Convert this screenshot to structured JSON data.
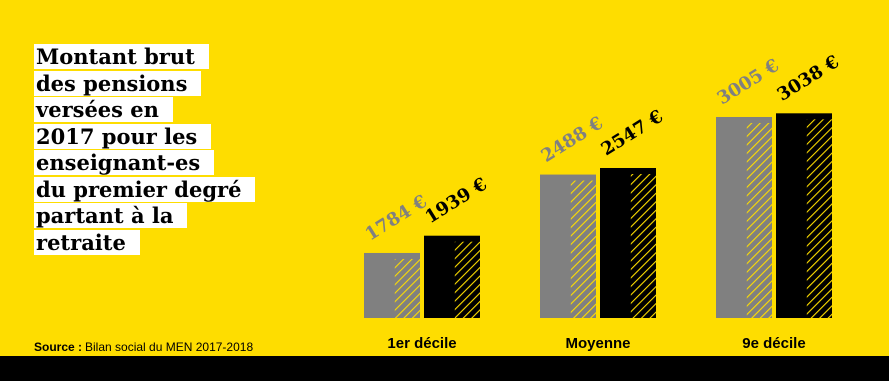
{
  "chart_data": {
    "type": "bar",
    "title": [
      "Montant brut",
      "des pensions",
      "versées en",
      "2017 pour les",
      "enseignant-es",
      "du premier degré",
      "partant à la",
      "retraite"
    ],
    "source_label": "Source :",
    "source": "Bilan social du MEN 2017-2018",
    "categories": [
      "1er décile",
      "Moyenne",
      "9e décile"
    ],
    "series": [
      {
        "color": "#808080",
        "values": [
          1784,
          2488,
          3005
        ],
        "value_labels": [
          "1784 €",
          "2488 €",
          "3005 €"
        ]
      },
      {
        "color": "#000000",
        "values": [
          1939,
          2547,
          3038
        ],
        "value_labels": [
          "1939 €",
          "2547 €",
          "3038 €"
        ]
      }
    ],
    "ylim": [
      1200,
      3400
    ],
    "background": "#fedd00"
  }
}
